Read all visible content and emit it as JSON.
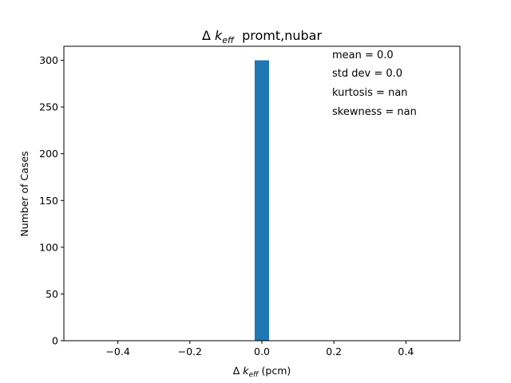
{
  "chart_data": {
    "type": "bar",
    "title": {
      "prefix": "Δ ",
      "var": "k",
      "sub": "eff",
      "suffix": "  promt,nubar"
    },
    "xlabel": {
      "prefix": "Δ ",
      "var": "k",
      "sub": "eff",
      "suffix": " (pcm)"
    },
    "ylabel": "Number of Cases",
    "xlim": [
      -0.55,
      0.55
    ],
    "ylim": [
      0,
      315
    ],
    "xticks": [
      -0.4,
      -0.2,
      0.0,
      0.2,
      0.4
    ],
    "xtick_labels": [
      "−0.4",
      "−0.2",
      "0.0",
      "0.2",
      "0.4"
    ],
    "yticks": [
      0,
      50,
      100,
      150,
      200,
      250,
      300
    ],
    "ytick_labels": [
      "0",
      "50",
      "100",
      "150",
      "200",
      "250",
      "300"
    ],
    "bars": [
      {
        "x_left": -0.02,
        "x_right": 0.02,
        "count": 300
      }
    ],
    "bar_color": "#1f77b4",
    "grid": false,
    "annotations": [
      "mean = 0.0",
      "std dev = 0.0",
      "kurtosis = nan",
      "skewness = nan"
    ]
  }
}
